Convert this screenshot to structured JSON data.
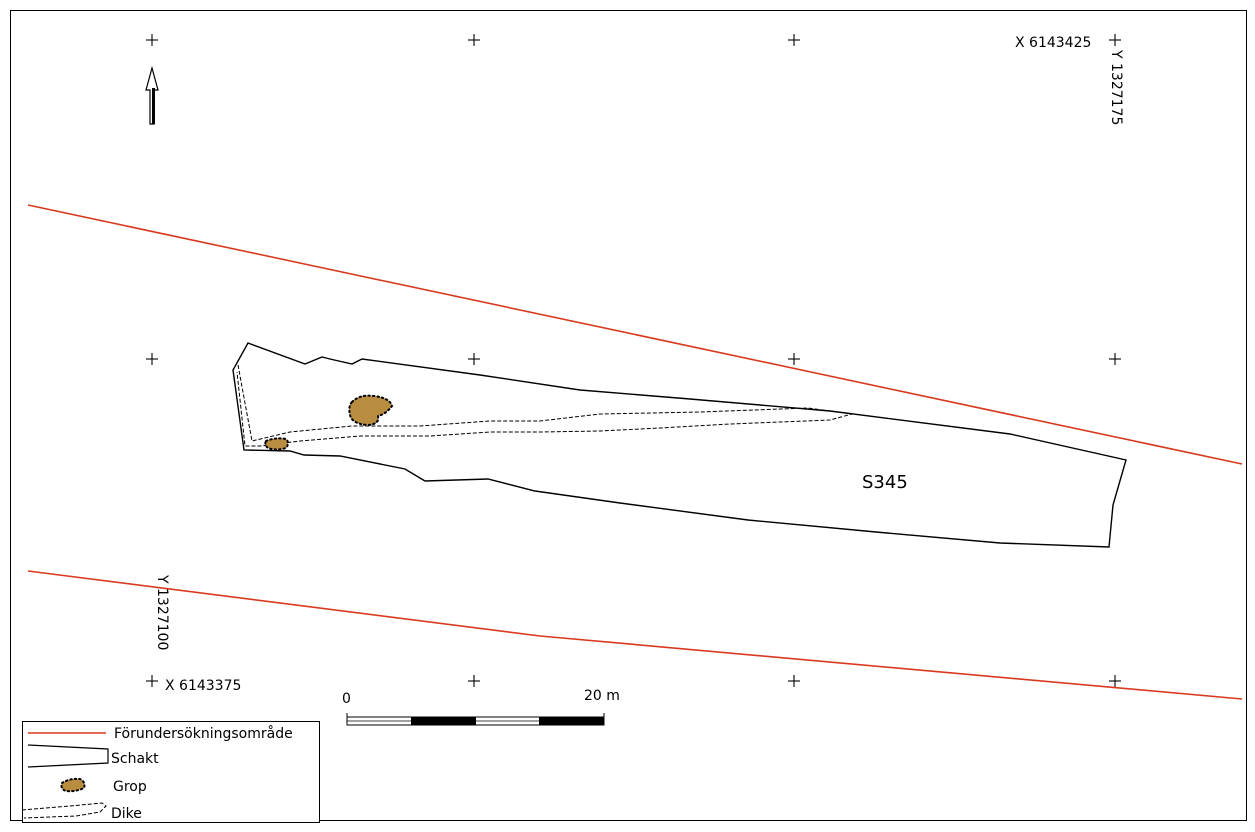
{
  "colors": {
    "boundary": "#d93a1f",
    "pit_fill": "#b98d40",
    "outline": "#000000",
    "background": "#ffffff"
  },
  "icons": {
    "north_arrow": "north-arrow-icon",
    "grid_cross": "plus-icon"
  },
  "coordinates": {
    "top_right_x": "X 6143425",
    "top_right_y": "Y 1327175",
    "bottom_left_x": "X 6143375",
    "bottom_left_y": "Y 1327100"
  },
  "trench_label": "S345",
  "scale_bar": {
    "start_label": "0",
    "end_label": "20 m"
  },
  "legend": {
    "boundary": "Förundersökningsområde",
    "trench": "Schakt",
    "pit": "Grop",
    "ditch": "Dike"
  }
}
